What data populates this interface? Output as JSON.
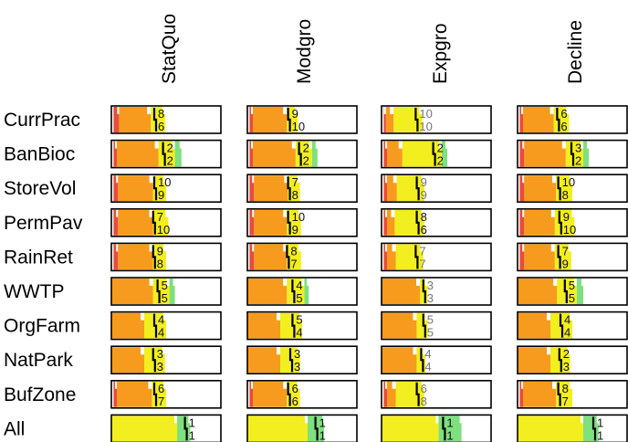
{
  "chart_data": {
    "type": "heatmap",
    "title": "",
    "columns": [
      "StatQuo",
      "Modgro",
      "Expgro",
      "Decline"
    ],
    "rows": [
      "CurrPrac",
      "BanBioc",
      "StoreVol",
      "PermPav",
      "RainRet",
      "WWTP",
      "OrgFarm",
      "NatPark",
      "BufZone",
      "All"
    ],
    "ranks": [
      [
        [
          8,
          6
        ],
        [
          9,
          10
        ],
        [
          10,
          10
        ],
        [
          6,
          6
        ]
      ],
      [
        [
          2,
          2
        ],
        [
          2,
          2
        ],
        [
          2,
          2
        ],
        [
          3,
          2
        ]
      ],
      [
        [
          10,
          9
        ],
        [
          7,
          8
        ],
        [
          9,
          9
        ],
        [
          10,
          8
        ]
      ],
      [
        [
          7,
          10
        ],
        [
          10,
          9
        ],
        [
          8,
          6
        ],
        [
          9,
          10
        ]
      ],
      [
        [
          9,
          8
        ],
        [
          8,
          7
        ],
        [
          7,
          7
        ],
        [
          7,
          9
        ]
      ],
      [
        [
          5,
          5
        ],
        [
          4,
          5
        ],
        [
          3,
          3
        ],
        [
          5,
          5
        ]
      ],
      [
        [
          4,
          4
        ],
        [
          5,
          4
        ],
        [
          5,
          5
        ],
        [
          4,
          4
        ]
      ],
      [
        [
          3,
          3
        ],
        [
          3,
          3
        ],
        [
          4,
          4
        ],
        [
          2,
          3
        ]
      ],
      [
        [
          6,
          7
        ],
        [
          6,
          6
        ],
        [
          6,
          8
        ],
        [
          8,
          7
        ]
      ],
      [
        [
          1,
          1
        ],
        [
          1,
          1
        ],
        [
          1,
          1
        ],
        [
          1,
          1
        ]
      ]
    ],
    "ranks_bold": [
      [
        true,
        true,
        false,
        true
      ],
      [
        true,
        true,
        true,
        true
      ],
      [
        true,
        true,
        false,
        true
      ],
      [
        true,
        true,
        true,
        true
      ],
      [
        true,
        true,
        false,
        true
      ],
      [
        true,
        true,
        false,
        true
      ],
      [
        true,
        true,
        false,
        true
      ],
      [
        true,
        true,
        false,
        true
      ],
      [
        true,
        true,
        false,
        true
      ],
      [
        true,
        true,
        true,
        true
      ]
    ],
    "x_axis": {
      "min": 0,
      "max": 1
    },
    "band_definitions": "distribution bands: red / orange / yellow / green, median marked by black tick",
    "bands": [
      [
        [
          0.07,
          0.36,
          0.49,
          0.49,
          0.4
        ],
        [
          0.05,
          0.36,
          0.46,
          0.46,
          0.38
        ],
        [
          0.04,
          0.11,
          0.37,
          0.37,
          0.32
        ],
        [
          0.05,
          0.33,
          0.47,
          0.47,
          0.37
        ]
      ],
      [
        [
          0.05,
          0.43,
          0.58,
          0.64,
          0.48
        ],
        [
          0.05,
          0.44,
          0.59,
          0.64,
          0.48
        ],
        [
          0.05,
          0.19,
          0.55,
          0.6,
          0.48
        ],
        [
          0.06,
          0.44,
          0.6,
          0.65,
          0.5
        ]
      ],
      [
        [
          0.06,
          0.38,
          0.5,
          0.5,
          0.4
        ],
        [
          0.06,
          0.37,
          0.48,
          0.48,
          0.38
        ],
        [
          0.05,
          0.14,
          0.39,
          0.39,
          0.33
        ],
        [
          0.06,
          0.35,
          0.5,
          0.5,
          0.38
        ]
      ],
      [
        [
          0.06,
          0.38,
          0.52,
          0.52,
          0.39
        ],
        [
          0.06,
          0.36,
          0.49,
          0.49,
          0.38
        ],
        [
          0.05,
          0.12,
          0.39,
          0.39,
          0.33
        ],
        [
          0.06,
          0.34,
          0.52,
          0.52,
          0.39
        ]
      ],
      [
        [
          0.06,
          0.38,
          0.5,
          0.5,
          0.39
        ],
        [
          0.06,
          0.36,
          0.49,
          0.49,
          0.37
        ],
        [
          0.05,
          0.13,
          0.38,
          0.38,
          0.32
        ],
        [
          0.06,
          0.34,
          0.49,
          0.49,
          0.38
        ]
      ],
      [
        [
          0.0,
          0.38,
          0.53,
          0.58,
          0.43
        ],
        [
          0.0,
          0.36,
          0.52,
          0.56,
          0.42
        ],
        [
          0.0,
          0.35,
          0.42,
          0.42,
          0.39
        ],
        [
          0.0,
          0.36,
          0.54,
          0.6,
          0.44
        ]
      ],
      [
        [
          0.0,
          0.3,
          0.5,
          0.5,
          0.4
        ],
        [
          0.0,
          0.3,
          0.5,
          0.5,
          0.42
        ],
        [
          0.0,
          0.32,
          0.42,
          0.42,
          0.39
        ],
        [
          0.0,
          0.3,
          0.5,
          0.5,
          0.4
        ]
      ],
      [
        [
          0.0,
          0.3,
          0.49,
          0.49,
          0.39
        ],
        [
          0.0,
          0.3,
          0.48,
          0.48,
          0.4
        ],
        [
          0.0,
          0.32,
          0.4,
          0.4,
          0.37
        ],
        [
          0.0,
          0.3,
          0.48,
          0.48,
          0.39
        ]
      ],
      [
        [
          0.05,
          0.37,
          0.5,
          0.5,
          0.4
        ],
        [
          0.05,
          0.36,
          0.48,
          0.48,
          0.38
        ],
        [
          0.05,
          0.13,
          0.39,
          0.39,
          0.33
        ],
        [
          0.05,
          0.35,
          0.5,
          0.5,
          0.38
        ]
      ],
      [
        [
          0.0,
          0.0,
          0.6,
          0.72,
          0.68
        ],
        [
          0.0,
          0.0,
          0.55,
          0.7,
          0.63
        ],
        [
          0.0,
          0.0,
          0.52,
          0.73,
          0.57
        ],
        [
          0.0,
          0.0,
          0.6,
          0.74,
          0.7
        ]
      ]
    ],
    "colors": {
      "red": "#e74c3c",
      "orange": "#f79b1e",
      "yellow": "#f2ee1f",
      "green": "#7ee07e",
      "median": "#000000",
      "rank_bold": "#111111",
      "rank_light": "#777777",
      "frame": "#000000"
    }
  }
}
